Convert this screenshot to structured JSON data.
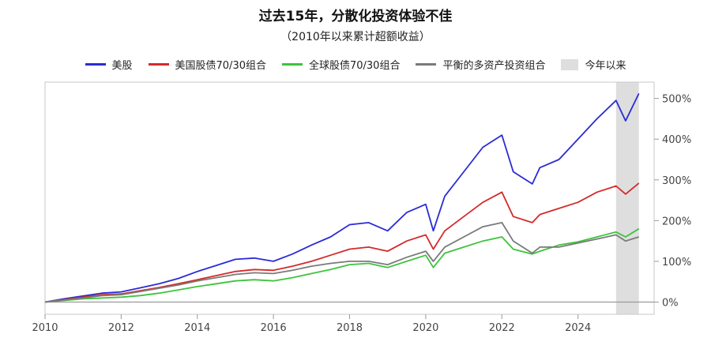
{
  "chart_data": {
    "type": "line",
    "title": "过去15年，分散化投资体验不佳",
    "subtitle": "（2010年以来累计超额收益）",
    "xlabel": "",
    "ylabel": "",
    "x_ticks": [
      "2010",
      "2012",
      "2014",
      "2016",
      "2018",
      "2020",
      "2022",
      "2024"
    ],
    "y_ticks": [
      "0%",
      "100%",
      "200%",
      "300%",
      "400%",
      "500%"
    ],
    "xlim": [
      2010,
      2026
    ],
    "ylim": [
      -30,
      540
    ],
    "grid": false,
    "legend_position": "top",
    "shaded_region": {
      "label": "今年以来",
      "x_start": 2025.0,
      "x_end": 2025.6,
      "color": "#dedede"
    },
    "x": [
      2010.0,
      2010.5,
      2011.0,
      2011.5,
      2012.0,
      2012.5,
      2013.0,
      2013.5,
      2014.0,
      2014.5,
      2015.0,
      2015.5,
      2016.0,
      2016.5,
      2017.0,
      2017.5,
      2018.0,
      2018.5,
      2019.0,
      2019.5,
      2020.0,
      2020.2,
      2020.5,
      2021.0,
      2021.5,
      2022.0,
      2022.3,
      2022.8,
      2023.0,
      2023.5,
      2024.0,
      2024.5,
      2025.0,
      2025.25,
      2025.6
    ],
    "series": [
      {
        "name": "美股",
        "color": "#2b2bd6",
        "values": [
          0,
          8,
          15,
          22,
          25,
          35,
          45,
          58,
          75,
          90,
          105,
          108,
          100,
          118,
          140,
          160,
          190,
          195,
          175,
          220,
          240,
          175,
          260,
          320,
          380,
          410,
          320,
          290,
          330,
          350,
          400,
          450,
          495,
          445,
          512
        ]
      },
      {
        "name": "美国股债70/30组合",
        "color": "#d42a2a",
        "values": [
          0,
          6,
          12,
          18,
          20,
          28,
          36,
          45,
          55,
          65,
          75,
          80,
          78,
          88,
          100,
          115,
          130,
          135,
          125,
          150,
          165,
          130,
          175,
          210,
          245,
          270,
          210,
          195,
          215,
          230,
          245,
          270,
          285,
          265,
          292
        ]
      },
      {
        "name": "全球股债70/30组合",
        "color": "#3cc43c",
        "values": [
          0,
          4,
          8,
          10,
          12,
          16,
          22,
          30,
          38,
          45,
          52,
          55,
          52,
          60,
          70,
          80,
          92,
          95,
          85,
          100,
          115,
          85,
          120,
          135,
          150,
          160,
          130,
          118,
          125,
          140,
          148,
          160,
          172,
          160,
          180
        ]
      },
      {
        "name": "平衡的多资产投资组合",
        "color": "#7a7a7a",
        "values": [
          0,
          5,
          10,
          16,
          18,
          26,
          34,
          42,
          52,
          60,
          68,
          72,
          70,
          78,
          88,
          95,
          100,
          100,
          92,
          110,
          125,
          100,
          135,
          160,
          185,
          195,
          150,
          120,
          135,
          135,
          145,
          155,
          165,
          150,
          160
        ]
      }
    ]
  }
}
